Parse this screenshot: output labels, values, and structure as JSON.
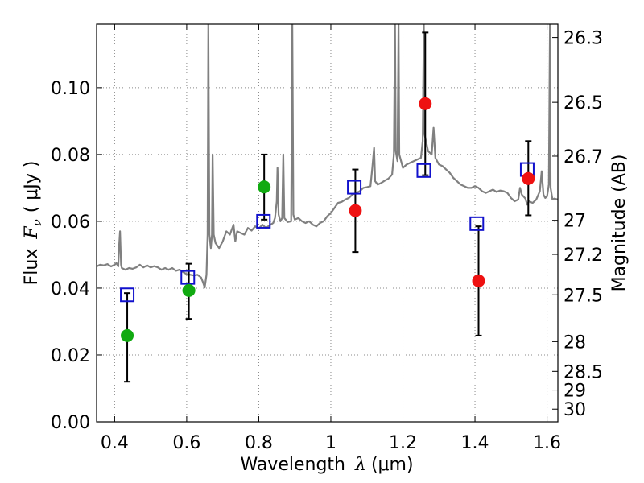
{
  "chart_data": {
    "type": "scatter",
    "xlabel_text": "Wavelength",
    "xlabel_symbol": "λ",
    "xlabel_unit": "(μm)",
    "ylabel_text": "Flux",
    "ylabel_symbol": "F",
    "ylabel_sub": "ν",
    "ylabel_unit": "( μJy )",
    "y2label": "Magnitude (AB)",
    "xlim": [
      0.35,
      1.63
    ],
    "ylim": [
      0.0,
      0.119
    ],
    "grid": true,
    "x_ticks": [
      0.4,
      0.6,
      0.8,
      1.0,
      1.2,
      1.4,
      1.6
    ],
    "x_tick_labels": [
      "0.4",
      "0.6",
      "0.8",
      "1",
      "1.2",
      "1.4",
      "1.6"
    ],
    "y_ticks": [
      0.0,
      0.02,
      0.04,
      0.06,
      0.08,
      0.1
    ],
    "y_tick_labels": [
      "0.00",
      "0.02",
      "0.04",
      "0.06",
      "0.08",
      "0.10"
    ],
    "mag_ticks": [
      {
        "label": "26.3",
        "flux": 0.115
      },
      {
        "label": "26.5",
        "flux": 0.0956
      },
      {
        "label": "26.7",
        "flux": 0.0795
      },
      {
        "label": "27",
        "flux": 0.0603
      },
      {
        "label": "27.2",
        "flux": 0.0501
      },
      {
        "label": "27.5",
        "flux": 0.038
      },
      {
        "label": "28",
        "flux": 0.024
      },
      {
        "label": "28.5",
        "flux": 0.0151
      },
      {
        "label": "29",
        "flux": 0.0095
      },
      {
        "label": "30",
        "flux": 0.0038
      }
    ],
    "colors": {
      "spectrum": "#808080",
      "green": "#11aa11",
      "red": "#ee1111",
      "model_box": "#1111cc",
      "grid": "#888888"
    },
    "spectrum": [
      [
        0.35,
        0.0465
      ],
      [
        0.36,
        0.047
      ],
      [
        0.37,
        0.0468
      ],
      [
        0.38,
        0.0472
      ],
      [
        0.39,
        0.0465
      ],
      [
        0.4,
        0.047
      ],
      [
        0.405,
        0.0475
      ],
      [
        0.41,
        0.0465
      ],
      [
        0.412,
        0.052
      ],
      [
        0.415,
        0.057
      ],
      [
        0.418,
        0.047
      ],
      [
        0.42,
        0.046
      ],
      [
        0.43,
        0.0455
      ],
      [
        0.44,
        0.046
      ],
      [
        0.45,
        0.0458
      ],
      [
        0.46,
        0.0462
      ],
      [
        0.47,
        0.047
      ],
      [
        0.48,
        0.0462
      ],
      [
        0.49,
        0.0468
      ],
      [
        0.5,
        0.0462
      ],
      [
        0.51,
        0.0466
      ],
      [
        0.52,
        0.0462
      ],
      [
        0.53,
        0.0455
      ],
      [
        0.54,
        0.046
      ],
      [
        0.55,
        0.0455
      ],
      [
        0.56,
        0.046
      ],
      [
        0.57,
        0.0452
      ],
      [
        0.58,
        0.0455
      ],
      [
        0.59,
        0.0448
      ],
      [
        0.6,
        0.0442
      ],
      [
        0.61,
        0.044
      ],
      [
        0.62,
        0.0438
      ],
      [
        0.63,
        0.044
      ],
      [
        0.64,
        0.0432
      ],
      [
        0.645,
        0.0418
      ],
      [
        0.65,
        0.0402
      ],
      [
        0.655,
        0.044
      ],
      [
        0.658,
        0.056
      ],
      [
        0.66,
        0.119
      ],
      [
        0.663,
        0.056
      ],
      [
        0.667,
        0.052
      ],
      [
        0.67,
        0.056
      ],
      [
        0.672,
        0.08
      ],
      [
        0.675,
        0.056
      ],
      [
        0.68,
        0.0535
      ],
      [
        0.69,
        0.052
      ],
      [
        0.7,
        0.054
      ],
      [
        0.71,
        0.057
      ],
      [
        0.72,
        0.056
      ],
      [
        0.73,
        0.059
      ],
      [
        0.735,
        0.054
      ],
      [
        0.74,
        0.057
      ],
      [
        0.75,
        0.0565
      ],
      [
        0.76,
        0.056
      ],
      [
        0.77,
        0.058
      ],
      [
        0.78,
        0.0572
      ],
      [
        0.79,
        0.0585
      ],
      [
        0.8,
        0.0578
      ],
      [
        0.81,
        0.059
      ],
      [
        0.82,
        0.058
      ],
      [
        0.83,
        0.0588
      ],
      [
        0.84,
        0.0595
      ],
      [
        0.845,
        0.061
      ],
      [
        0.85,
        0.066
      ],
      [
        0.852,
        0.076
      ],
      [
        0.855,
        0.062
      ],
      [
        0.86,
        0.06
      ],
      [
        0.865,
        0.061
      ],
      [
        0.868,
        0.08
      ],
      [
        0.871,
        0.061
      ],
      [
        0.88,
        0.0598
      ],
      [
        0.89,
        0.06
      ],
      [
        0.893,
        0.119
      ],
      [
        0.896,
        0.062
      ],
      [
        0.9,
        0.0605
      ],
      [
        0.91,
        0.061
      ],
      [
        0.92,
        0.06
      ],
      [
        0.93,
        0.0595
      ],
      [
        0.94,
        0.06
      ],
      [
        0.95,
        0.059
      ],
      [
        0.96,
        0.0585
      ],
      [
        0.97,
        0.0595
      ],
      [
        0.98,
        0.06
      ],
      [
        0.99,
        0.0615
      ],
      [
        1.0,
        0.0625
      ],
      [
        1.01,
        0.064
      ],
      [
        1.02,
        0.0655
      ],
      [
        1.03,
        0.0658
      ],
      [
        1.04,
        0.0665
      ],
      [
        1.05,
        0.067
      ],
      [
        1.06,
        0.068
      ],
      [
        1.07,
        0.0685
      ],
      [
        1.08,
        0.069
      ],
      [
        1.09,
        0.07
      ],
      [
        1.1,
        0.0702
      ],
      [
        1.11,
        0.0705
      ],
      [
        1.115,
        0.076
      ],
      [
        1.12,
        0.082
      ],
      [
        1.123,
        0.072
      ],
      [
        1.13,
        0.071
      ],
      [
        1.14,
        0.0715
      ],
      [
        1.15,
        0.0722
      ],
      [
        1.16,
        0.0728
      ],
      [
        1.17,
        0.074
      ],
      [
        1.175,
        0.08
      ],
      [
        1.178,
        0.119
      ],
      [
        1.18,
        0.081
      ],
      [
        1.185,
        0.078
      ],
      [
        1.188,
        0.119
      ],
      [
        1.19,
        0.08
      ],
      [
        1.2,
        0.076
      ],
      [
        1.21,
        0.077
      ],
      [
        1.22,
        0.0775
      ],
      [
        1.23,
        0.078
      ],
      [
        1.24,
        0.0785
      ],
      [
        1.25,
        0.079
      ],
      [
        1.255,
        0.084
      ],
      [
        1.258,
        0.119
      ],
      [
        1.26,
        0.086
      ],
      [
        1.27,
        0.081
      ],
      [
        1.28,
        0.08
      ],
      [
        1.285,
        0.088
      ],
      [
        1.29,
        0.079
      ],
      [
        1.3,
        0.077
      ],
      [
        1.31,
        0.0765
      ],
      [
        1.32,
        0.0755
      ],
      [
        1.33,
        0.0745
      ],
      [
        1.34,
        0.073
      ],
      [
        1.35,
        0.072
      ],
      [
        1.36,
        0.071
      ],
      [
        1.37,
        0.0705
      ],
      [
        1.38,
        0.07
      ],
      [
        1.39,
        0.07
      ],
      [
        1.4,
        0.0705
      ],
      [
        1.41,
        0.07
      ],
      [
        1.42,
        0.069
      ],
      [
        1.43,
        0.0685
      ],
      [
        1.44,
        0.069
      ],
      [
        1.45,
        0.0695
      ],
      [
        1.46,
        0.0688
      ],
      [
        1.47,
        0.0692
      ],
      [
        1.48,
        0.069
      ],
      [
        1.49,
        0.0685
      ],
      [
        1.5,
        0.067
      ],
      [
        1.51,
        0.066
      ],
      [
        1.52,
        0.0665
      ],
      [
        1.525,
        0.07
      ],
      [
        1.53,
        0.068
      ],
      [
        1.54,
        0.0668
      ],
      [
        1.545,
        0.065
      ],
      [
        1.55,
        0.066
      ],
      [
        1.56,
        0.0655
      ],
      [
        1.57,
        0.0665
      ],
      [
        1.58,
        0.069
      ],
      [
        1.585,
        0.075
      ],
      [
        1.59,
        0.068
      ],
      [
        1.595,
        0.067
      ],
      [
        1.6,
        0.0675
      ],
      [
        1.605,
        0.071
      ],
      [
        1.608,
        0.119
      ],
      [
        1.61,
        0.07
      ],
      [
        1.615,
        0.0665
      ],
      [
        1.62,
        0.0668
      ],
      [
        1.63,
        0.0665
      ]
    ],
    "model_boxes": [
      {
        "x": 0.435,
        "y": 0.038
      },
      {
        "x": 0.603,
        "y": 0.0432
      },
      {
        "x": 0.813,
        "y": 0.06
      },
      {
        "x": 1.065,
        "y": 0.0702
      },
      {
        "x": 1.258,
        "y": 0.0752
      },
      {
        "x": 1.405,
        "y": 0.0593
      },
      {
        "x": 1.545,
        "y": 0.0755
      }
    ],
    "observed_points": [
      {
        "x": 0.435,
        "y": 0.0258,
        "err_low": 0.012,
        "err_high": 0.0385,
        "color": "green"
      },
      {
        "x": 0.606,
        "y": 0.0393,
        "err_low": 0.0308,
        "err_high": 0.0473,
        "color": "green"
      },
      {
        "x": 0.815,
        "y": 0.0703,
        "err_low": 0.0605,
        "err_high": 0.08,
        "color": "green"
      },
      {
        "x": 1.068,
        "y": 0.0632,
        "err_low": 0.0508,
        "err_high": 0.0755,
        "color": "red"
      },
      {
        "x": 1.262,
        "y": 0.0952,
        "err_low": 0.0738,
        "err_high": 0.1165,
        "color": "red"
      },
      {
        "x": 1.41,
        "y": 0.0422,
        "err_low": 0.0258,
        "err_high": 0.0585,
        "color": "red"
      },
      {
        "x": 1.548,
        "y": 0.0728,
        "err_low": 0.0618,
        "err_high": 0.084,
        "color": "red"
      }
    ]
  }
}
